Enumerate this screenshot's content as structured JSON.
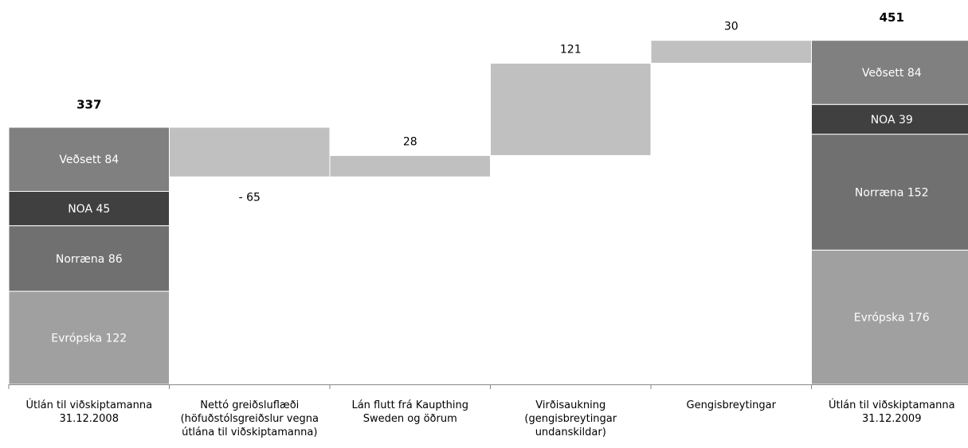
{
  "chart_data": {
    "type": "waterfall",
    "title": "",
    "xlabel": "",
    "ylabel": "",
    "ylim": [
      0,
      480
    ],
    "grid": false,
    "legend": "none",
    "categories": [
      "Útlán til viðskiptamanna 31.12.2008",
      "Nettó greiðsluflæði (höfuðstólsgreiðslur vegna útlána til viðskiptamanna)",
      "Lán flutt frá Kaupthing Sweden og öðrum",
      "Virðisaukning (gengisbreytingar undanskildar)",
      "Gengisbreytingar",
      "Útlán til viðskiptamanna 31.12.2009"
    ],
    "category_lines": [
      [
        "Útlán til viðskiptamanna",
        "31.12.2008"
      ],
      [
        "Nettó greiðsluflæði",
        "(höfuðstólsgreiðslur vegna",
        "útlána til viðskiptamanna)"
      ],
      [
        "Lán flutt frá Kaupthing",
        "Sweden og öðrum"
      ],
      [
        "Virðisaukning",
        "(gengisbreytingar",
        "undanskildar)"
      ],
      [
        "Gengisbreytingar"
      ],
      [
        "Útlán til viðskiptamanna",
        "31.12.2009"
      ]
    ],
    "totals": [
      {
        "category_index": 0,
        "total": 337,
        "total_label": "337",
        "segments": [
          {
            "name": "Evrópska",
            "value": 122,
            "label": "Evrópska 122"
          },
          {
            "name": "Norræna",
            "value": 86,
            "label": "Norræna 86"
          },
          {
            "name": "NOA",
            "value": 45,
            "label": "NOA 45"
          },
          {
            "name": "Veðsett",
            "value": 84,
            "label": "Veðsett 84"
          }
        ]
      },
      {
        "category_index": 5,
        "total": 451,
        "total_label": "451",
        "segments": [
          {
            "name": "Evrópska",
            "value": 176,
            "label": "Evrópska 176"
          },
          {
            "name": "Norræna",
            "value": 152,
            "label": "Norræna 152"
          },
          {
            "name": "NOA",
            "value": 39,
            "label": "NOA 39"
          },
          {
            "name": "Veðsett",
            "value": 84,
            "label": "Veðsett 84"
          }
        ]
      }
    ],
    "changes": [
      {
        "category_index": 1,
        "value": -65,
        "label": "- 65"
      },
      {
        "category_index": 2,
        "value": 28,
        "label": "28"
      },
      {
        "category_index": 3,
        "value": 121,
        "label": "121"
      },
      {
        "category_index": 4,
        "value": 30,
        "label": "30"
      }
    ],
    "colors": {
      "Evrópska": "#a0a0a0",
      "Norræna": "#707070",
      "NOA": "#404040",
      "Veðsett": "#808080",
      "change": "#c0c0c0",
      "segment_text": "#ffffff",
      "label_text": "#000000",
      "axis": "#888888"
    }
  }
}
